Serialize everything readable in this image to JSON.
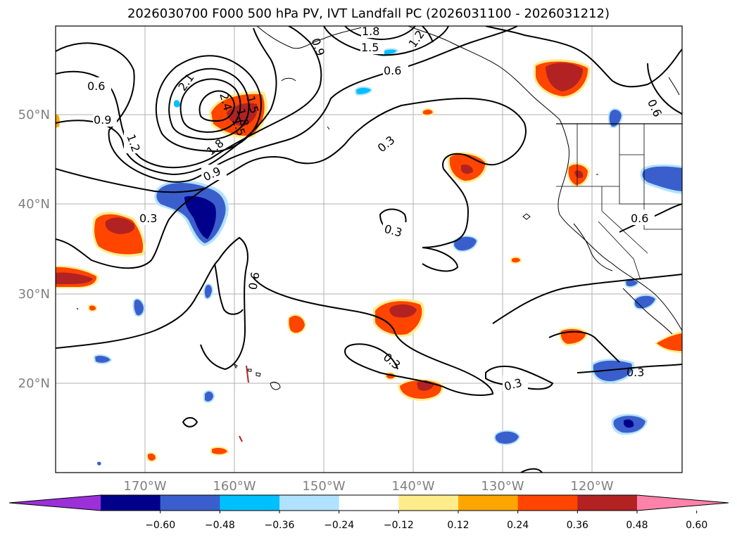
{
  "title": "2026030700 F000 500 hPa PV, IVT Landfall PC (2026031100 - 2026031212)",
  "lon_labels": [
    "170°W",
    "160°W",
    "150°W",
    "140°W",
    "130°W",
    "120°W"
  ],
  "lat_labels": [
    "50°N",
    "40°N",
    "30°N",
    "20°N"
  ],
  "contour_labels": [
    "0.6",
    "0.9",
    "1.2",
    "1.5",
    "1.8",
    "2.1",
    "2.4",
    "1.5",
    "1.8",
    "0.9",
    "1.8",
    "1.5",
    "1.2",
    "0.9",
    "0.6",
    "0.3",
    "0.3",
    "0.6",
    "0.6",
    "0.3",
    "0.3",
    "0.3",
    "0.3",
    "0.6"
  ],
  "colorbar": {
    "ticks": [
      "−0.60",
      "−0.48",
      "−0.36",
      "−0.24",
      "−0.12",
      "0.12",
      "0.24",
      "0.36",
      "0.48",
      "0.60"
    ],
    "colors": [
      "#9b30d9",
      "#00008b",
      "#3a5fcd",
      "#00bfff",
      "#b0e2ff",
      "#ffffff",
      "#ffec8b",
      "#ffa500",
      "#ff4500",
      "#b22222",
      "#ff82ab"
    ]
  },
  "shading_colors": {
    "neg_strong": "#00008b",
    "neg_mid": "#3a5fcd",
    "neg_light": "#00bfff",
    "neg_pale": "#b0e2ff",
    "pos_pale": "#ffec8b",
    "pos_light": "#ffa500",
    "pos_mid": "#ff4500",
    "pos_strong": "#b22222",
    "pos_max": "#ff82ab"
  }
}
